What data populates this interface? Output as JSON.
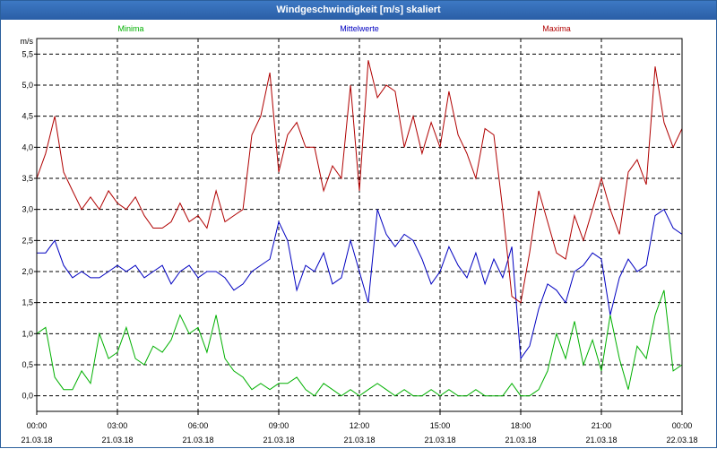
{
  "window": {
    "title": "Windgeschwindigkeit [m/s] skaliert"
  },
  "chart_data": {
    "type": "line",
    "ylabel": "m/s",
    "ylim": [
      -0.25,
      5.75
    ],
    "yticks": [
      "0,0",
      "0,5",
      "1,0",
      "1,5",
      "2,0",
      "2,5",
      "3,0",
      "3,5",
      "4,0",
      "4,5",
      "5,0",
      "5,5"
    ],
    "xlim": [
      0,
      24
    ],
    "xticks": [
      {
        "time": "00:00",
        "date": "21.03.18"
      },
      {
        "time": "03:00",
        "date": "21.03.18"
      },
      {
        "time": "06:00",
        "date": "21.03.18"
      },
      {
        "time": "09:00",
        "date": "21.03.18"
      },
      {
        "time": "12:00",
        "date": "21.03.18"
      },
      {
        "time": "15:00",
        "date": "21.03.18"
      },
      {
        "time": "18:00",
        "date": "21.03.18"
      },
      {
        "time": "21:00",
        "date": "21.03.18"
      },
      {
        "time": "00:00",
        "date": "22.03.18"
      }
    ],
    "grid": true,
    "legend": "top",
    "series": [
      {
        "name": "Minima",
        "color": "#00b000",
        "x": [
          0,
          0.33,
          0.67,
          1,
          1.33,
          1.67,
          2,
          2.33,
          2.67,
          3,
          3.33,
          3.67,
          4,
          4.33,
          4.67,
          5,
          5.33,
          5.67,
          6,
          6.33,
          6.67,
          7,
          7.33,
          7.67,
          8,
          8.33,
          8.67,
          9,
          9.33,
          9.67,
          10,
          10.33,
          10.67,
          11,
          11.33,
          11.67,
          12,
          12.33,
          12.67,
          13,
          13.33,
          13.67,
          14,
          14.33,
          14.67,
          15,
          15.33,
          15.67,
          16,
          16.33,
          16.67,
          17,
          17.33,
          17.67,
          18,
          18.33,
          18.67,
          19,
          19.33,
          19.67,
          20,
          20.33,
          20.67,
          21,
          21.33,
          21.67,
          22,
          22.33,
          22.67,
          23,
          23.33,
          23.67,
          24
        ],
        "values": [
          1.0,
          1.1,
          0.3,
          0.1,
          0.1,
          0.4,
          0.2,
          1.0,
          0.6,
          0.7,
          1.1,
          0.6,
          0.5,
          0.8,
          0.7,
          0.9,
          1.3,
          1.0,
          1.1,
          0.7,
          1.3,
          0.6,
          0.4,
          0.3,
          0.1,
          0.2,
          0.1,
          0.2,
          0.2,
          0.3,
          0.1,
          0.0,
          0.2,
          0.1,
          0.0,
          0.1,
          0.0,
          0.1,
          0.2,
          0.1,
          0.0,
          0.1,
          0.0,
          0.0,
          0.1,
          0.0,
          0.1,
          0.0,
          0.0,
          0.1,
          0.0,
          0.0,
          0.0,
          0.2,
          0.0,
          0.0,
          0.1,
          0.4,
          1.0,
          0.6,
          1.2,
          0.5,
          0.9,
          0.4,
          1.3,
          0.6,
          0.1,
          0.8,
          0.6,
          1.3,
          1.7,
          0.4,
          0.5
        ]
      },
      {
        "name": "Mittelwerte",
        "color": "#0000c0",
        "x": [
          0,
          0.33,
          0.67,
          1,
          1.33,
          1.67,
          2,
          2.33,
          2.67,
          3,
          3.33,
          3.67,
          4,
          4.33,
          4.67,
          5,
          5.33,
          5.67,
          6,
          6.33,
          6.67,
          7,
          7.33,
          7.67,
          8,
          8.33,
          8.67,
          9,
          9.33,
          9.67,
          10,
          10.33,
          10.67,
          11,
          11.33,
          11.67,
          12,
          12.33,
          12.67,
          13,
          13.33,
          13.67,
          14,
          14.33,
          14.67,
          15,
          15.33,
          15.67,
          16,
          16.33,
          16.67,
          17,
          17.33,
          17.67,
          18,
          18.33,
          18.67,
          19,
          19.33,
          19.67,
          20,
          20.33,
          20.67,
          21,
          21.33,
          21.67,
          22,
          22.33,
          22.67,
          23,
          23.33,
          23.67,
          24
        ],
        "values": [
          2.3,
          2.3,
          2.5,
          2.1,
          1.9,
          2.0,
          1.9,
          1.9,
          2.0,
          2.1,
          2.0,
          2.1,
          1.9,
          2.0,
          2.1,
          1.8,
          2.0,
          2.1,
          1.9,
          2.0,
          2.0,
          1.9,
          1.7,
          1.8,
          2.0,
          2.1,
          2.2,
          2.8,
          2.5,
          1.7,
          2.1,
          2.0,
          2.3,
          1.8,
          1.9,
          2.5,
          2.0,
          1.5,
          3.0,
          2.6,
          2.4,
          2.6,
          2.5,
          2.2,
          1.8,
          2.0,
          2.4,
          2.1,
          1.9,
          2.3,
          1.8,
          2.2,
          1.9,
          2.4,
          0.6,
          0.8,
          1.4,
          1.8,
          1.7,
          1.5,
          2.0,
          2.1,
          2.3,
          2.2,
          1.3,
          1.9,
          2.2,
          2.0,
          2.1,
          2.9,
          3.0,
          2.7,
          2.6
        ]
      },
      {
        "name": "Maxima",
        "color": "#b00000",
        "x": [
          0,
          0.33,
          0.67,
          1,
          1.33,
          1.67,
          2,
          2.33,
          2.67,
          3,
          3.33,
          3.67,
          4,
          4.33,
          4.67,
          5,
          5.33,
          5.67,
          6,
          6.33,
          6.67,
          7,
          7.33,
          7.67,
          8,
          8.33,
          8.67,
          9,
          9.33,
          9.67,
          10,
          10.33,
          10.67,
          11,
          11.33,
          11.67,
          12,
          12.33,
          12.67,
          13,
          13.33,
          13.67,
          14,
          14.33,
          14.67,
          15,
          15.33,
          15.67,
          16,
          16.33,
          16.67,
          17,
          17.33,
          17.67,
          18,
          18.33,
          18.67,
          19,
          19.33,
          19.67,
          20,
          20.33,
          20.67,
          21,
          21.33,
          21.67,
          22,
          22.33,
          22.67,
          23,
          23.33,
          23.67,
          24
        ],
        "values": [
          3.5,
          3.9,
          4.5,
          3.6,
          3.3,
          3.0,
          3.2,
          3.0,
          3.3,
          3.1,
          3.0,
          3.2,
          2.9,
          2.7,
          2.7,
          2.8,
          3.1,
          2.8,
          2.9,
          2.7,
          3.3,
          2.8,
          2.9,
          3.0,
          4.2,
          4.5,
          5.2,
          3.6,
          4.2,
          4.4,
          4.0,
          4.0,
          3.3,
          3.7,
          3.5,
          5.0,
          3.3,
          5.4,
          4.8,
          5.0,
          4.9,
          4.0,
          4.5,
          3.9,
          4.4,
          4.0,
          4.9,
          4.2,
          3.9,
          3.5,
          4.3,
          4.2,
          3.0,
          1.6,
          1.5,
          2.3,
          3.3,
          2.8,
          2.3,
          2.2,
          2.9,
          2.5,
          3.0,
          3.5,
          3.0,
          2.6,
          3.6,
          3.8,
          3.4,
          5.3,
          4.4,
          4.0,
          4.3
        ]
      }
    ]
  }
}
